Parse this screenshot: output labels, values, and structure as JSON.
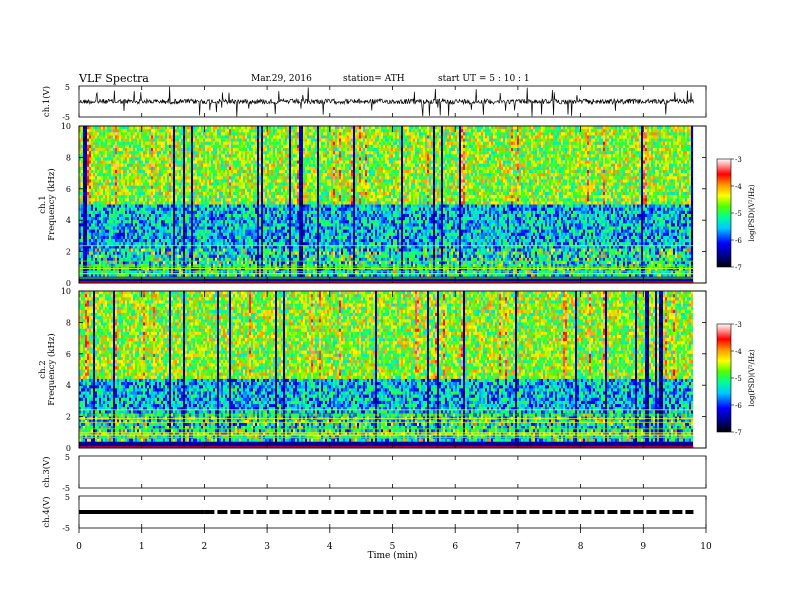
{
  "header": {
    "title": "VLF  Spectra",
    "date": "Mar.29, 2016",
    "station": "station= ATH",
    "start": "start  UT  =   5  : 10 : 1"
  },
  "chart_data": [
    {
      "type": "line",
      "name": "ch1-waveform",
      "ylabel": "ch.1(V)",
      "ylim": [
        -5,
        5
      ],
      "yticks": [
        "5",
        "-5"
      ],
      "xlim": [
        0,
        10
      ],
      "x_end": 9.8,
      "baseline": 0,
      "color": "#000000"
    },
    {
      "type": "heatmap",
      "name": "ch1-spectrogram",
      "ylabel": "ch.1\nFrequency (kHz)",
      "ylim": [
        0,
        10
      ],
      "yticks": [
        0,
        2,
        4,
        6,
        8,
        10
      ],
      "xlim": [
        0,
        10
      ],
      "x_end": 9.8,
      "colorbar": {
        "label": "log(PSD)(V²/Hz)",
        "range": [
          -7,
          -3
        ],
        "ticks": [
          "-3",
          "-4",
          "-5",
          "-6",
          "-7"
        ]
      }
    },
    {
      "type": "heatmap",
      "name": "ch2-spectrogram",
      "ylabel": "ch.2\nFrequency (kHz)",
      "ylim": [
        0,
        10
      ],
      "yticks": [
        0,
        2,
        4,
        6,
        8,
        10
      ],
      "xlim": [
        0,
        10
      ],
      "x_end": 9.8,
      "colorbar": {
        "label": "log(PSD)(V²/Hz)",
        "range": [
          -7,
          -3
        ],
        "ticks": [
          "-3",
          "-4",
          "-5",
          "-6",
          "-7"
        ]
      }
    },
    {
      "type": "line",
      "name": "ch3-waveform",
      "ylabel": "ch.3(V)",
      "ylim": [
        -5,
        5
      ],
      "yticks": [
        "5",
        "-5"
      ],
      "xlim": [
        0,
        10
      ],
      "values": []
    },
    {
      "type": "line",
      "name": "ch4-waveform",
      "ylabel": "ch.4(V)",
      "ylim": [
        -5,
        5
      ],
      "yticks": [
        "5",
        "-5"
      ],
      "xlim": [
        0,
        10
      ],
      "x_end": 9.8,
      "level": 0,
      "color": "#000000"
    }
  ],
  "xaxis": {
    "label": "Time  (min)",
    "ticks": [
      "0",
      "1",
      "2",
      "3",
      "4",
      "5",
      "6",
      "7",
      "8",
      "9",
      "10"
    ]
  }
}
